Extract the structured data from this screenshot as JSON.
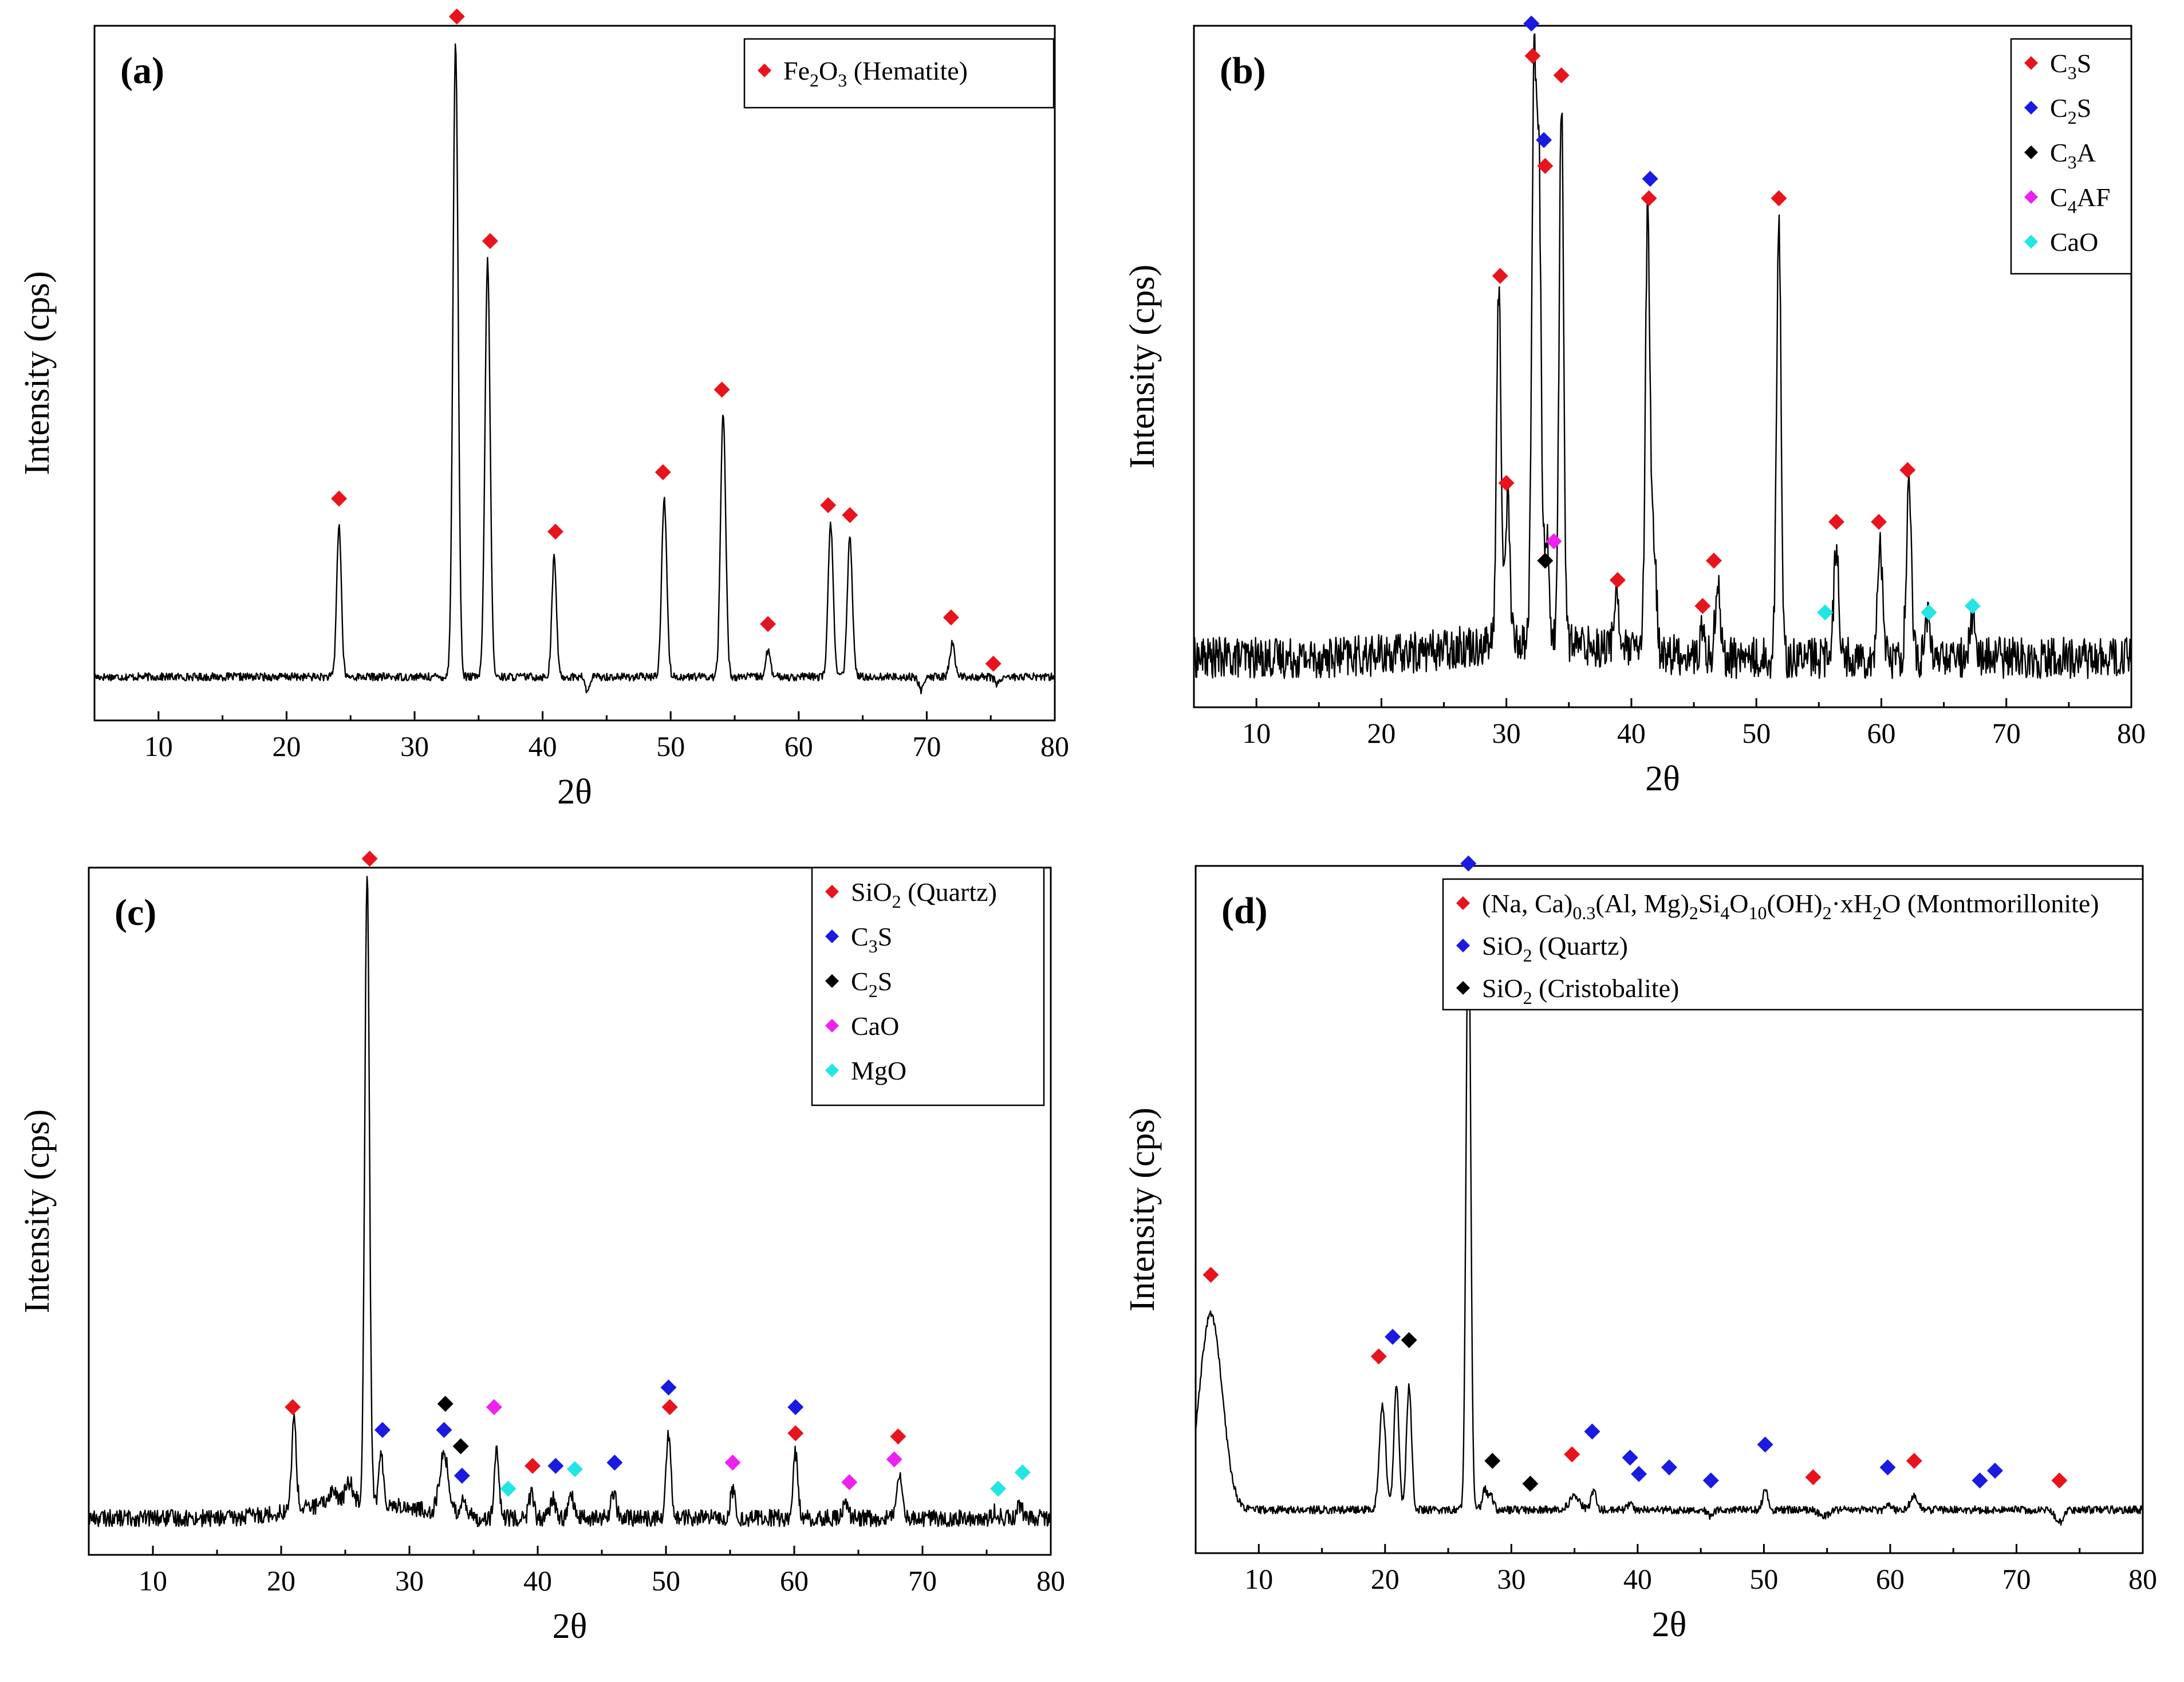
{
  "figure": {
    "panels": [
      {
        "id": "a",
        "label": "(a)",
        "xlabel": "2θ",
        "ylabel": "Intensity (cps)",
        "xticks": [
          "10",
          "20",
          "30",
          "40",
          "50",
          "60",
          "70",
          "80"
        ],
        "legend": [
          {
            "html": "Fe<tspan baseline-shift=\"sub\" font-size=\"32\">2</tspan>O<tspan baseline-shift=\"sub\" font-size=\"32\">3</tspan> (Hematite)",
            "text": "Fe2O3 (Hematite)",
            "color": "#e8141c"
          }
        ]
      },
      {
        "id": "b",
        "label": "(b)",
        "xlabel": "2θ",
        "ylabel": "Intensity (cps)",
        "xticks": [
          "10",
          "20",
          "30",
          "40",
          "50",
          "60",
          "70",
          "80"
        ],
        "legend": [
          {
            "text": "C3S",
            "color": "#e8141c"
          },
          {
            "text": "C2S",
            "color": "#1a1ae0"
          },
          {
            "text": "C3A",
            "color": "#000000"
          },
          {
            "text": "C4AF",
            "color": "#ee22ee"
          },
          {
            "text": "CaO",
            "color": "#22e5e5"
          }
        ]
      },
      {
        "id": "c",
        "label": "(c)",
        "xlabel": "2θ",
        "ylabel": "Intensity (cps)",
        "xticks": [
          "10",
          "20",
          "30",
          "40",
          "50",
          "60",
          "70",
          "80"
        ],
        "legend": [
          {
            "text": "SiO2 (Quartz)",
            "color": "#e8141c"
          },
          {
            "text": "C3S",
            "color": "#1a1ae0"
          },
          {
            "text": "C2S",
            "color": "#000000"
          },
          {
            "text": "CaO",
            "color": "#ee22ee"
          },
          {
            "text": "MgO",
            "color": "#22e5e5"
          }
        ]
      },
      {
        "id": "d",
        "label": "(d)",
        "xlabel": "2θ",
        "ylabel": "Intensity (cps)",
        "xticks": [
          "10",
          "20",
          "30",
          "40",
          "50",
          "60",
          "70",
          "80"
        ],
        "legend": [
          {
            "text": "(Na, Ca)0.3(Al, Mg)2Si4O10(OH)2·xH2O (Montmorillonite)",
            "color": "#e8141c"
          },
          {
            "text": "SiO2 (Quartz)",
            "color": "#1a1ae0"
          },
          {
            "text": "SiO2 (Cristobalite)",
            "color": "#000000"
          }
        ]
      }
    ]
  },
  "chart_data": [
    {
      "type": "line",
      "panel": "(a)",
      "title": "",
      "xlabel": "2θ",
      "ylabel": "Intensity (cps)",
      "xlim": [
        5,
        80
      ],
      "ylim": [
        0,
        100
      ],
      "baseline": 4,
      "peaks": [
        {
          "x": 24.1,
          "y": 27,
          "w": 0.18
        },
        {
          "x": 33.2,
          "y": 100,
          "w": 0.2
        },
        {
          "x": 35.7,
          "y": 67,
          "w": 0.2
        },
        {
          "x": 40.9,
          "y": 22,
          "w": 0.18
        },
        {
          "x": 49.5,
          "y": 31,
          "w": 0.2
        },
        {
          "x": 54.1,
          "y": 44,
          "w": 0.2
        },
        {
          "x": 57.6,
          "y": 8,
          "w": 0.18
        },
        {
          "x": 62.5,
          "y": 27,
          "w": 0.2
        },
        {
          "x": 64.0,
          "y": 25,
          "w": 0.2
        },
        {
          "x": 69.6,
          "y": 2,
          "w": 0.2
        },
        {
          "x": 72.0,
          "y": 9,
          "w": 0.2
        },
        {
          "x": 75.5,
          "y": 3,
          "w": 0.2
        },
        {
          "x": 43.5,
          "y": 1.5,
          "w": 0.15
        }
      ],
      "markers": [
        {
          "x": 24.1,
          "y": 31,
          "phase": 0
        },
        {
          "x": 33.3,
          "y": 104,
          "phase": 0
        },
        {
          "x": 35.9,
          "y": 70,
          "phase": 0
        },
        {
          "x": 41.0,
          "y": 26,
          "phase": 0
        },
        {
          "x": 49.4,
          "y": 35,
          "phase": 0
        },
        {
          "x": 54.0,
          "y": 47.5,
          "phase": 0
        },
        {
          "x": 57.6,
          "y": 12,
          "phase": 0
        },
        {
          "x": 62.3,
          "y": 30,
          "phase": 0
        },
        {
          "x": 64.0,
          "y": 28.5,
          "phase": 0
        },
        {
          "x": 71.9,
          "y": 13,
          "phase": 0
        },
        {
          "x": 75.2,
          "y": 6,
          "phase": 0
        }
      ],
      "noise": 0.6
    },
    {
      "type": "line",
      "panel": "(b)",
      "title": "",
      "xlabel": "2θ",
      "ylabel": "Intensity (cps)",
      "xlim": [
        5,
        80
      ],
      "ylim": [
        0,
        100
      ],
      "baseline": 5,
      "peaks": [
        {
          "x": 29.4,
          "y": 60,
          "w": 0.18
        },
        {
          "x": 30.1,
          "y": 28,
          "w": 0.18
        },
        {
          "x": 32.2,
          "y": 89,
          "w": 0.18
        },
        {
          "x": 32.6,
          "y": 76,
          "w": 0.18
        },
        {
          "x": 33.2,
          "y": 22,
          "w": 0.2
        },
        {
          "x": 34.4,
          "y": 89,
          "w": 0.18
        },
        {
          "x": 38.8,
          "y": 14,
          "w": 0.2
        },
        {
          "x": 41.3,
          "y": 72,
          "w": 0.18
        },
        {
          "x": 41.8,
          "y": 22,
          "w": 0.2
        },
        {
          "x": 45.7,
          "y": 9,
          "w": 0.2
        },
        {
          "x": 46.9,
          "y": 17,
          "w": 0.2
        },
        {
          "x": 51.8,
          "y": 72,
          "w": 0.18
        },
        {
          "x": 56.4,
          "y": 23,
          "w": 0.2
        },
        {
          "x": 59.9,
          "y": 23,
          "w": 0.2
        },
        {
          "x": 62.2,
          "y": 31,
          "w": 0.2
        },
        {
          "x": 63.7,
          "y": 11,
          "w": 0.2
        },
        {
          "x": 67.3,
          "y": 12,
          "w": 0.2
        },
        {
          "x": 17.5,
          "y": 5,
          "w": 0.2
        },
        {
          "x": 22.5,
          "y": 5,
          "w": 0.2
        }
      ],
      "markers": [
        {
          "x": 29.5,
          "y": 64,
          "phase": 0
        },
        {
          "x": 30.0,
          "y": 32,
          "phase": 0
        },
        {
          "x": 32.1,
          "y": 98,
          "phase": 0
        },
        {
          "x": 33.1,
          "y": 81,
          "phase": 0
        },
        {
          "x": 34.4,
          "y": 95,
          "phase": 0
        },
        {
          "x": 38.9,
          "y": 17,
          "phase": 0
        },
        {
          "x": 41.4,
          "y": 76,
          "phase": 0
        },
        {
          "x": 45.7,
          "y": 13,
          "phase": 0
        },
        {
          "x": 46.6,
          "y": 20,
          "phase": 0
        },
        {
          "x": 51.8,
          "y": 76,
          "phase": 0
        },
        {
          "x": 56.4,
          "y": 26,
          "phase": 0
        },
        {
          "x": 59.8,
          "y": 26,
          "phase": 0
        },
        {
          "x": 62.1,
          "y": 34,
          "phase": 0
        },
        {
          "x": 32.0,
          "y": 103,
          "phase": 1
        },
        {
          "x": 33.0,
          "y": 85,
          "phase": 1
        },
        {
          "x": 41.5,
          "y": 79,
          "phase": 1
        },
        {
          "x": 33.1,
          "y": 20,
          "phase": 2
        },
        {
          "x": 33.8,
          "y": 23,
          "phase": 3
        },
        {
          "x": 55.5,
          "y": 12,
          "phase": 4
        },
        {
          "x": 63.8,
          "y": 12,
          "phase": 4
        },
        {
          "x": 67.3,
          "y": 13,
          "phase": 4
        }
      ],
      "noise": 3.2
    },
    {
      "type": "line",
      "panel": "(c)",
      "title": "",
      "xlabel": "2θ",
      "ylabel": "Intensity (cps)",
      "xlim": [
        5,
        80
      ],
      "ylim": [
        0,
        100
      ],
      "baseline": 3,
      "peaks": [
        {
          "x": 21.0,
          "y": 17,
          "w": 0.18
        },
        {
          "x": 26.7,
          "y": 100,
          "w": 0.18
        },
        {
          "x": 27.8,
          "y": 10,
          "w": 0.18
        },
        {
          "x": 32.7,
          "y": 12,
          "w": 0.35
        },
        {
          "x": 34.2,
          "y": 6,
          "w": 0.2
        },
        {
          "x": 36.8,
          "y": 13,
          "w": 0.18
        },
        {
          "x": 39.5,
          "y": 7,
          "w": 0.18
        },
        {
          "x": 41.2,
          "y": 6,
          "w": 0.2
        },
        {
          "x": 42.6,
          "y": 7,
          "w": 0.18
        },
        {
          "x": 45.9,
          "y": 7,
          "w": 0.2
        },
        {
          "x": 50.2,
          "y": 16,
          "w": 0.18
        },
        {
          "x": 55.2,
          "y": 7,
          "w": 0.2
        },
        {
          "x": 60.1,
          "y": 13,
          "w": 0.18
        },
        {
          "x": 64.0,
          "y": 5,
          "w": 0.2
        },
        {
          "x": 68.2,
          "y": 10,
          "w": 0.25
        },
        {
          "x": 75.7,
          "y": 4,
          "w": 0.2
        },
        {
          "x": 77.6,
          "y": 5,
          "w": 0.2
        },
        {
          "x": 24.0,
          "y": 5,
          "w": 0.3
        },
        {
          "x": 25.3,
          "y": 6,
          "w": 0.3
        }
      ],
      "markers": [
        {
          "x": 20.9,
          "y": 20,
          "phase": 0
        },
        {
          "x": 26.9,
          "y": 104,
          "phase": 0
        },
        {
          "x": 39.6,
          "y": 11,
          "phase": 0
        },
        {
          "x": 50.3,
          "y": 20,
          "phase": 0
        },
        {
          "x": 60.1,
          "y": 16,
          "phase": 0
        },
        {
          "x": 68.1,
          "y": 15.5,
          "phase": 0
        },
        {
          "x": 27.9,
          "y": 16.5,
          "phase": 1
        },
        {
          "x": 32.7,
          "y": 16.5,
          "phase": 1
        },
        {
          "x": 34.1,
          "y": 9.5,
          "phase": 1
        },
        {
          "x": 41.4,
          "y": 11,
          "phase": 1
        },
        {
          "x": 46.0,
          "y": 11.5,
          "phase": 1
        },
        {
          "x": 50.2,
          "y": 23,
          "phase": 1
        },
        {
          "x": 60.1,
          "y": 20,
          "phase": 1
        },
        {
          "x": 32.8,
          "y": 20.5,
          "phase": 2
        },
        {
          "x": 34.0,
          "y": 14,
          "phase": 2
        },
        {
          "x": 36.6,
          "y": 20,
          "phase": 3
        },
        {
          "x": 55.2,
          "y": 11.5,
          "phase": 3
        },
        {
          "x": 64.3,
          "y": 8.5,
          "phase": 3
        },
        {
          "x": 67.8,
          "y": 12,
          "phase": 3
        },
        {
          "x": 37.7,
          "y": 7.5,
          "phase": 4
        },
        {
          "x": 42.9,
          "y": 10.5,
          "phase": 4
        },
        {
          "x": 75.9,
          "y": 7.5,
          "phase": 4
        },
        {
          "x": 77.8,
          "y": 10,
          "phase": 4
        }
      ],
      "noise": 1.3
    },
    {
      "type": "line",
      "panel": "(d)",
      "title": "",
      "xlabel": "2θ",
      "ylabel": "Intensity (cps)",
      "xlim": [
        5,
        80
      ],
      "ylim": [
        0,
        100
      ],
      "baseline": 4,
      "peaks": [
        {
          "x": 6.2,
          "y": 34,
          "w": 0.9
        },
        {
          "x": 19.8,
          "y": 20,
          "w": 0.25
        },
        {
          "x": 20.9,
          "y": 23,
          "w": 0.2
        },
        {
          "x": 21.9,
          "y": 23,
          "w": 0.2
        },
        {
          "x": 26.6,
          "y": 100,
          "w": 0.18
        },
        {
          "x": 27.9,
          "y": 7,
          "w": 0.2
        },
        {
          "x": 28.4,
          "y": 6,
          "w": 0.2
        },
        {
          "x": 35.0,
          "y": 6,
          "w": 0.4
        },
        {
          "x": 36.5,
          "y": 7,
          "w": 0.2
        },
        {
          "x": 39.4,
          "y": 5,
          "w": 0.2
        },
        {
          "x": 40.3,
          "y": 4,
          "w": 0.2
        },
        {
          "x": 42.5,
          "y": 4,
          "w": 0.2
        },
        {
          "x": 45.8,
          "y": 3,
          "w": 0.2
        },
        {
          "x": 50.1,
          "y": 7,
          "w": 0.2
        },
        {
          "x": 54.8,
          "y": 3,
          "w": 0.4
        },
        {
          "x": 59.9,
          "y": 5,
          "w": 0.2
        },
        {
          "x": 61.9,
          "y": 6,
          "w": 0.3
        },
        {
          "x": 67.7,
          "y": 4,
          "w": 0.2
        },
        {
          "x": 68.2,
          "y": 4,
          "w": 0.2
        },
        {
          "x": 73.4,
          "y": 2,
          "w": 0.3
        }
      ],
      "markers": [
        {
          "x": 6.2,
          "y": 40,
          "phase": 0
        },
        {
          "x": 19.5,
          "y": 27.5,
          "phase": 0
        },
        {
          "x": 34.8,
          "y": 12.5,
          "phase": 0
        },
        {
          "x": 53.9,
          "y": 9,
          "phase": 0
        },
        {
          "x": 61.9,
          "y": 11.5,
          "phase": 0
        },
        {
          "x": 73.4,
          "y": 8.5,
          "phase": 0
        },
        {
          "x": 20.6,
          "y": 30.5,
          "phase": 1
        },
        {
          "x": 26.6,
          "y": 103,
          "phase": 1
        },
        {
          "x": 36.4,
          "y": 16,
          "phase": 1
        },
        {
          "x": 39.4,
          "y": 12,
          "phase": 1
        },
        {
          "x": 40.1,
          "y": 9.5,
          "phase": 1
        },
        {
          "x": 42.5,
          "y": 10.5,
          "phase": 1
        },
        {
          "x": 45.8,
          "y": 8.5,
          "phase": 1
        },
        {
          "x": 50.1,
          "y": 14,
          "phase": 1
        },
        {
          "x": 59.8,
          "y": 10.5,
          "phase": 1
        },
        {
          "x": 67.1,
          "y": 8.5,
          "phase": 1
        },
        {
          "x": 68.3,
          "y": 10,
          "phase": 1
        },
        {
          "x": 21.9,
          "y": 30,
          "phase": 2
        },
        {
          "x": 28.5,
          "y": 11.5,
          "phase": 2
        },
        {
          "x": 31.5,
          "y": 8,
          "phase": 2
        }
      ],
      "noise": 0.6
    }
  ]
}
